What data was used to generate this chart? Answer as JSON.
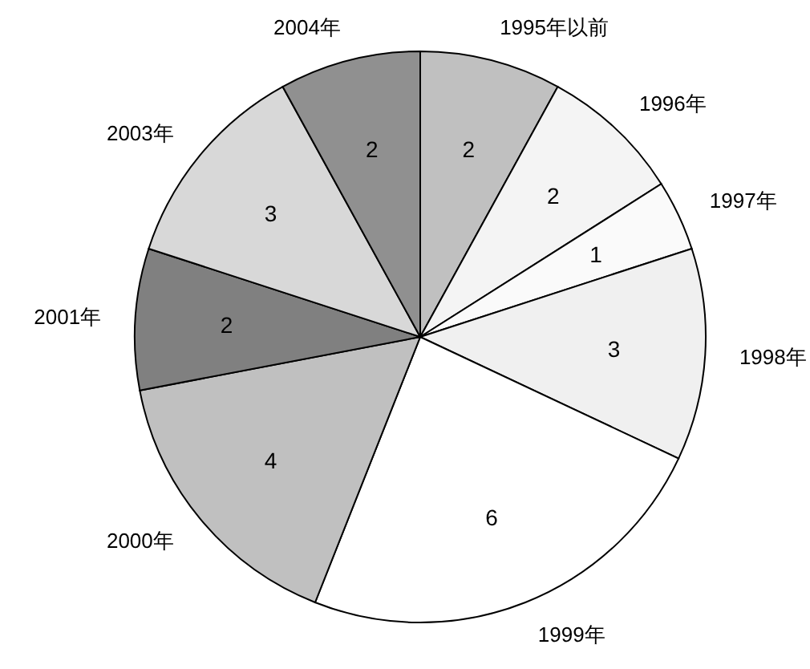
{
  "chart_data": {
    "type": "pie",
    "categories": [
      "1995年以前",
      "1996年",
      "1997年",
      "1998年",
      "1999年",
      "2000年",
      "2001年",
      "2003年",
      "2004年"
    ],
    "values": [
      2,
      2,
      1,
      3,
      6,
      4,
      2,
      3,
      2
    ],
    "colors": [
      "#c0c0c0",
      "#f4f4f4",
      "#fafafa",
      "#f0f0f0",
      "#ffffff",
      "#c0c0c0",
      "#808080",
      "#d8d8d8",
      "#909090"
    ],
    "data_labels": true
  }
}
